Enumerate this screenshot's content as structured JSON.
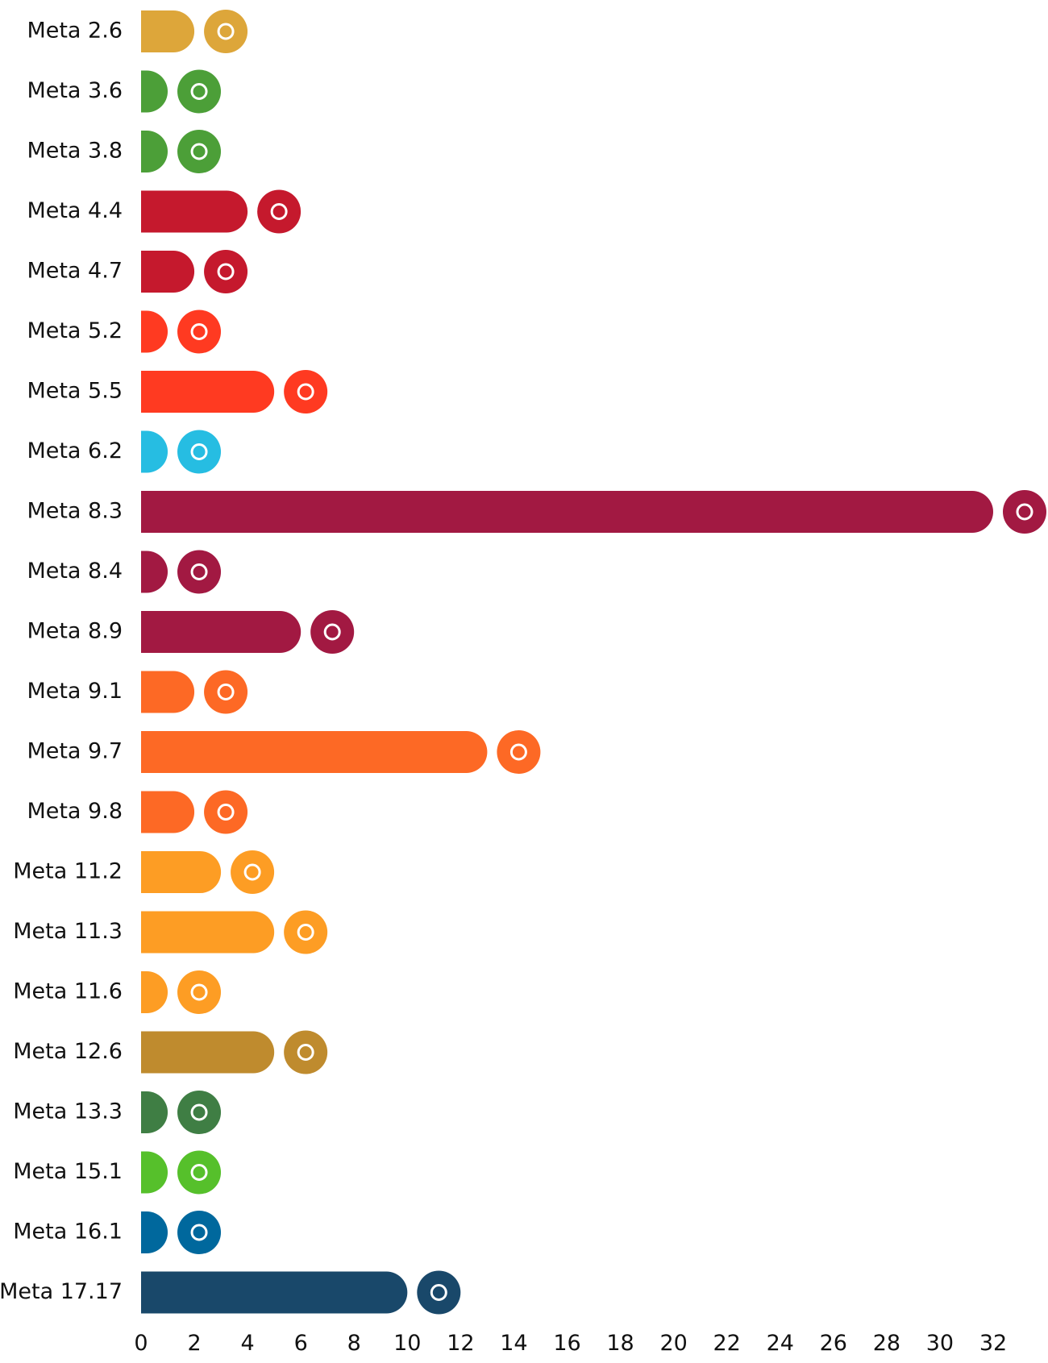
{
  "chart_data": {
    "type": "barh",
    "categories": [
      "Meta 2.6",
      "Meta 3.6",
      "Meta 3.8",
      "Meta 4.4",
      "Meta 4.7",
      "Meta 5.2",
      "Meta 5.5",
      "Meta 6.2",
      "Meta 8.3",
      "Meta 8.4",
      "Meta 8.9",
      "Meta 9.1",
      "Meta 9.7",
      "Meta 9.8",
      "Meta 11.2",
      "Meta 11.3",
      "Meta 11.6",
      "Meta 12.6",
      "Meta 13.3",
      "Meta 15.1",
      "Meta 16.1",
      "Meta 17.17"
    ],
    "values": [
      2,
      1,
      1,
      4,
      2,
      1,
      5,
      1,
      32,
      1,
      6,
      2,
      13,
      2,
      3,
      5,
      1,
      5,
      1,
      1,
      1,
      10
    ],
    "colors": [
      "#DDA63A",
      "#4C9F38",
      "#4C9F38",
      "#C5192D",
      "#C5192D",
      "#FF3A21",
      "#FF3A21",
      "#26BDE2",
      "#A21942",
      "#A21942",
      "#A21942",
      "#FD6925",
      "#FD6925",
      "#FD6925",
      "#FD9D24",
      "#FD9D24",
      "#FD9D24",
      "#BF8B2E",
      "#3F7E44",
      "#56C02B",
      "#00689D",
      "#19486A"
    ],
    "xlim": [
      0,
      32
    ],
    "xticks": [
      0,
      2,
      4,
      6,
      8,
      10,
      12,
      14,
      16,
      18,
      20,
      22,
      24,
      26,
      28,
      30,
      32
    ]
  }
}
